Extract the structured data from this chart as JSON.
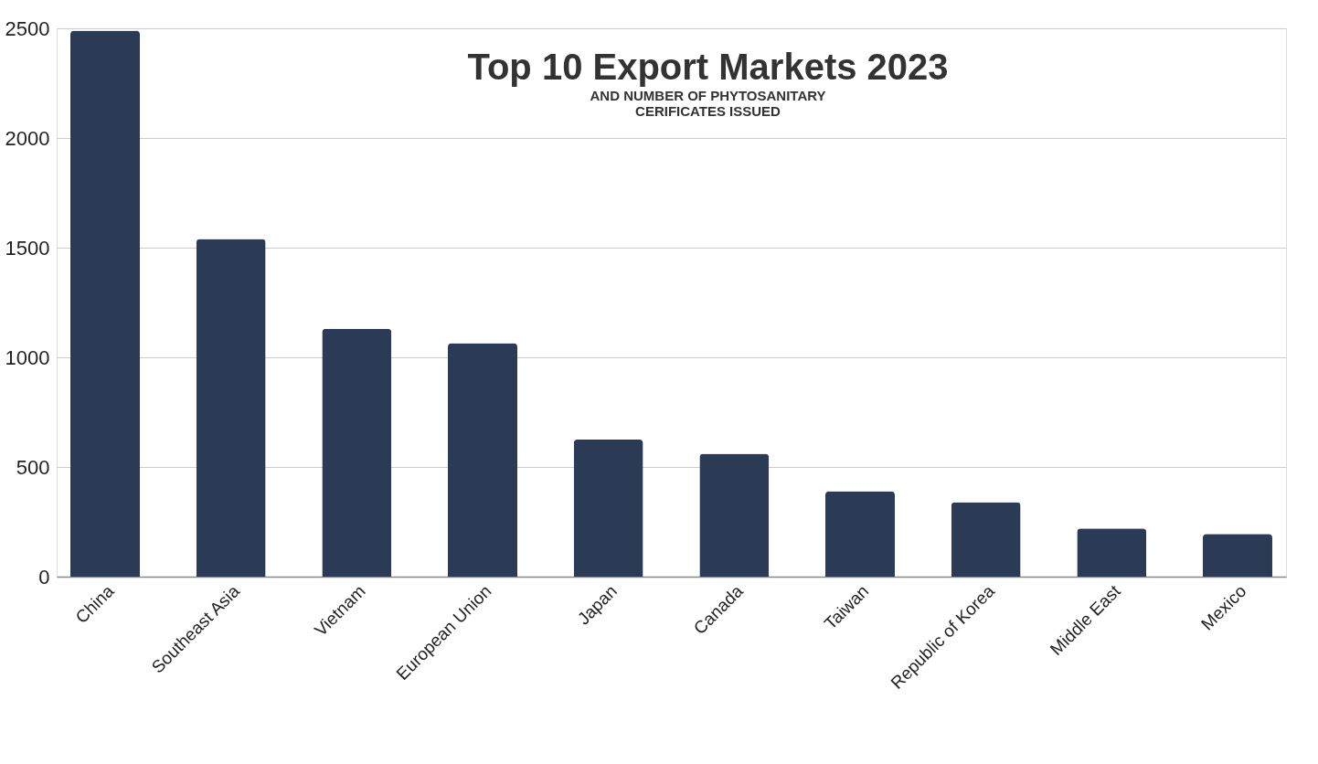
{
  "chart_data": {
    "type": "bar",
    "title": "Top 10 Export Markets 2023",
    "subtitle": "AND NUMBER OF PHYTOSANITARY CERIFICATES ISSUED",
    "categories": [
      "China",
      "Southeast Asia",
      "Vietnam",
      "European Union",
      "Japan",
      "Canada",
      "Taiwan",
      "Republic of Korea",
      "Middle East",
      "Mexico"
    ],
    "values": [
      2490,
      1540,
      1130,
      1065,
      625,
      560,
      390,
      340,
      220,
      195
    ],
    "color": "#2c3b55",
    "ylim": [
      0,
      2500
    ],
    "yticks": [
      0,
      500,
      1000,
      1500,
      2000,
      2500
    ],
    "grid": "y"
  }
}
